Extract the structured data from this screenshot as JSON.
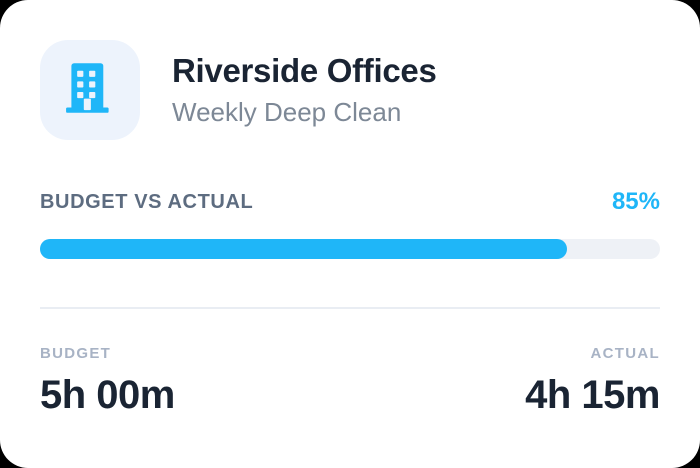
{
  "card": {
    "title": "Riverside Offices",
    "subtitle": "Weekly Deep Clean",
    "icon": "building-icon",
    "progress": {
      "section_label": "BUDGET VS ACTUAL",
      "percent": 85,
      "percent_label": "85%"
    },
    "stats": [
      {
        "label": "BUDGET",
        "value": "5h 00m"
      },
      {
        "label": "ACTUAL",
        "value": "4h 15m"
      }
    ],
    "colors": {
      "accent_blue": "#1FB6F8",
      "icon_tile_bg": "#EDF3FC",
      "progress_track": "#EEF1F6",
      "divider": "#E9EDF3",
      "heading_text": "#1A2433",
      "subtitle_text": "#7D8896",
      "section_label_text": "#5D6C80",
      "stat_label_text": "#A8B3C5",
      "card_bg": "#FFFFFF",
      "page_bg": "#000000"
    }
  }
}
